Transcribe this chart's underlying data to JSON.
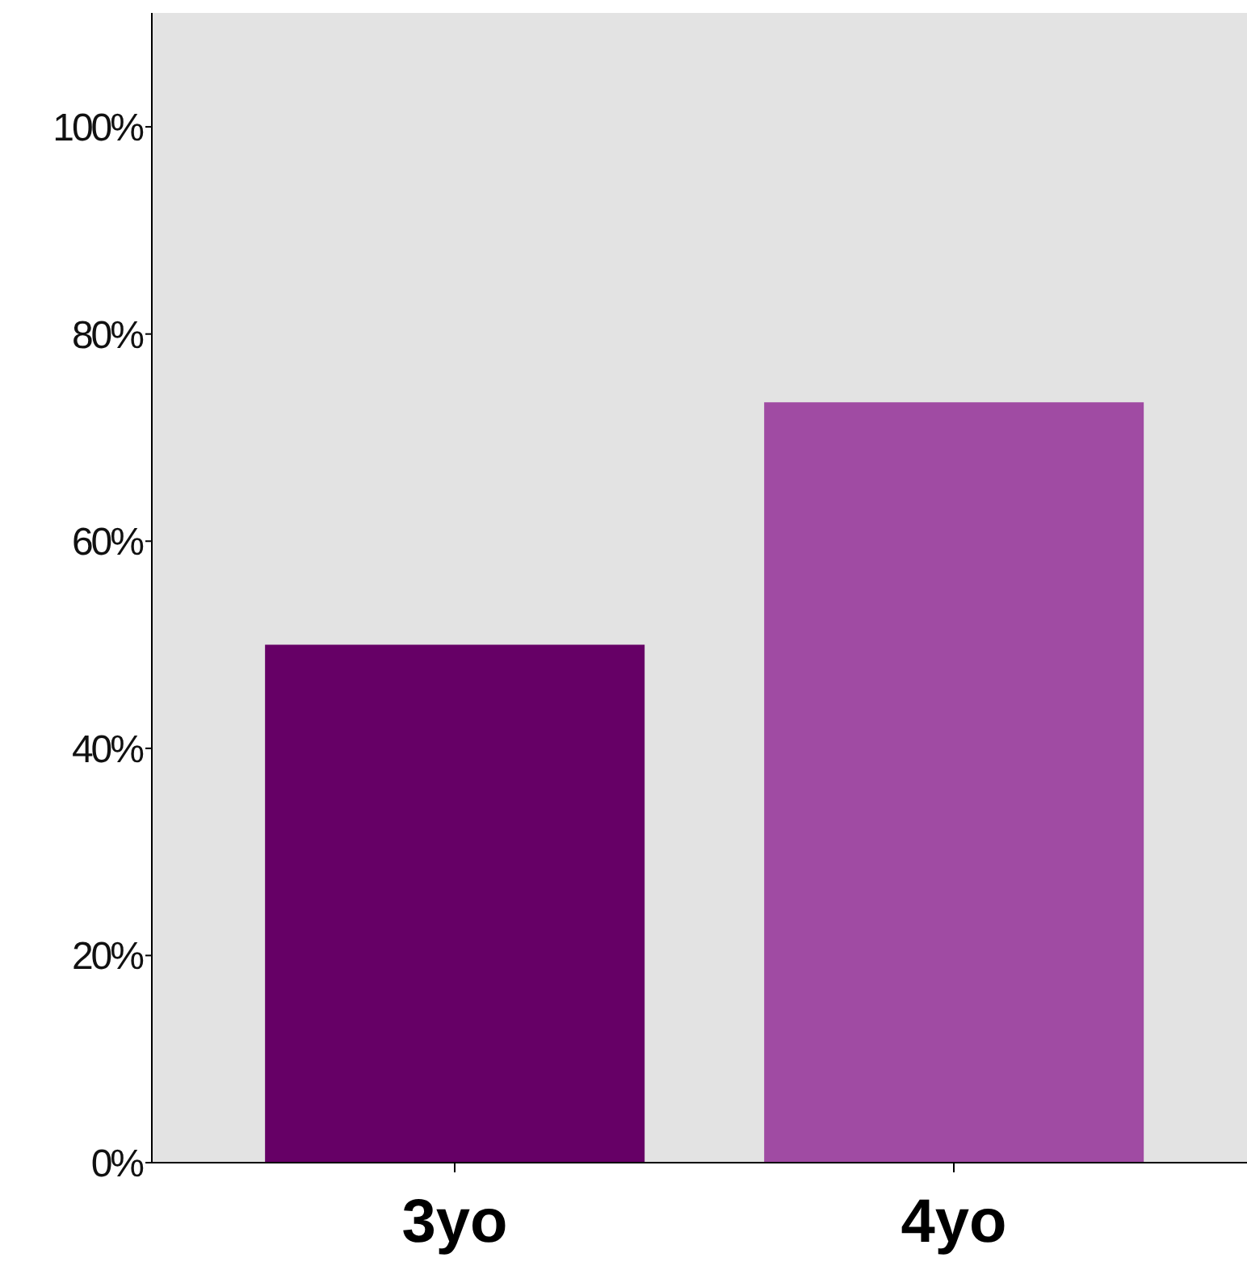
{
  "chart_data": {
    "type": "bar",
    "categories": [
      "3yo",
      "4yo"
    ],
    "values": [
      50,
      73.4
    ],
    "colors": [
      "#660066",
      "#a04ba3"
    ],
    "ylim": [
      0,
      111
    ],
    "yticks": [
      {
        "value": 0,
        "label": "0%"
      },
      {
        "value": 20,
        "label": "20%"
      },
      {
        "value": 40,
        "label": "40%"
      },
      {
        "value": 60,
        "label": "60%"
      },
      {
        "value": 80,
        "label": "80%"
      },
      {
        "value": 100,
        "label": "100%"
      }
    ]
  }
}
